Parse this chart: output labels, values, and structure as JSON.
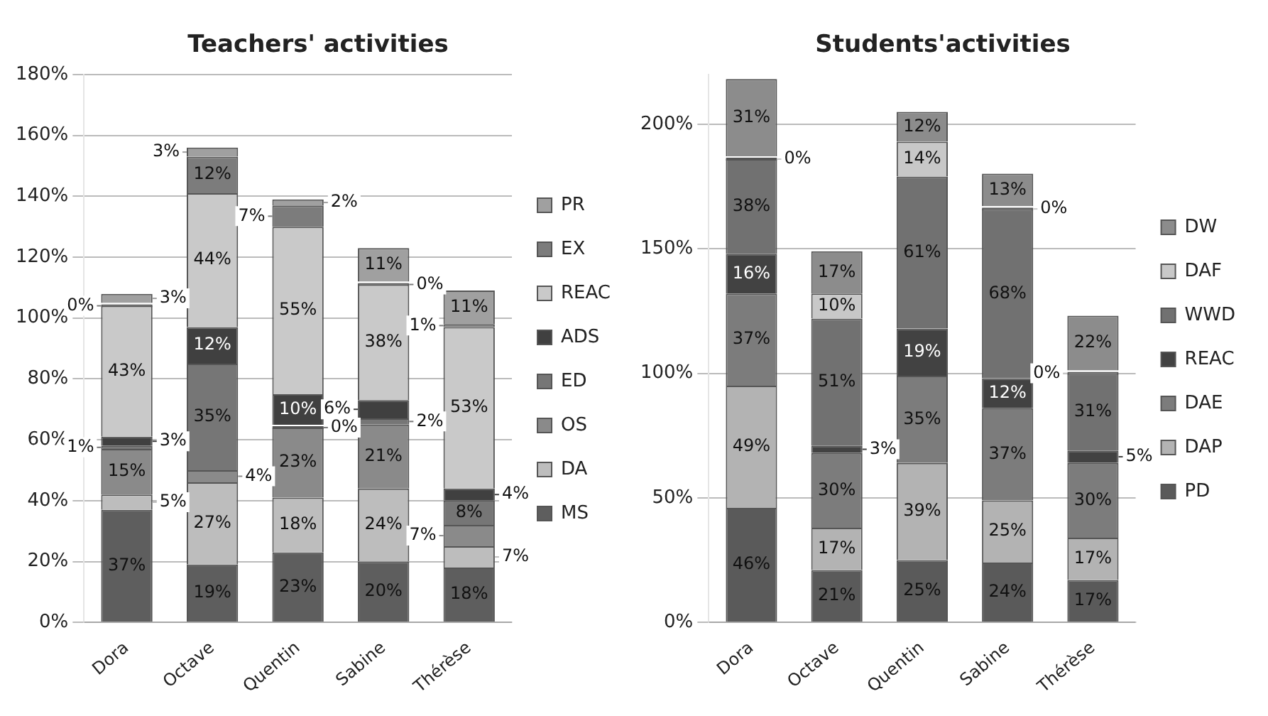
{
  "chart_data": [
    {
      "type": "bar",
      "title": "Teachers' activities",
      "categories": [
        "Dora",
        "Octave",
        "Quentin",
        "Sabine",
        "Thérèse"
      ],
      "stacked": true,
      "legend": "right",
      "grid": "y",
      "ylim": [
        0,
        180
      ],
      "yticks": [
        {
          "value": 0,
          "label": "0%"
        },
        {
          "value": 20,
          "label": "20%"
        },
        {
          "value": 40,
          "label": "40%"
        },
        {
          "value": 60,
          "label": "60%"
        },
        {
          "value": 80,
          "label": "80%"
        },
        {
          "value": 100,
          "label": "100%"
        },
        {
          "value": 120,
          "label": "120%"
        },
        {
          "value": 140,
          "label": "140%"
        },
        {
          "value": 160,
          "label": "160%"
        },
        {
          "value": 180,
          "label": "180%"
        }
      ],
      "series": [
        {
          "name": "MS",
          "color": "#5e5e5e",
          "values": [
            37,
            19,
            23,
            20,
            18
          ],
          "value_labels": [
            "37%",
            "19%",
            "23%",
            "20%",
            "18%"
          ]
        },
        {
          "name": "DA",
          "color": "#bdbdbd",
          "values": [
            5,
            27,
            18,
            24,
            7
          ],
          "value_labels": [
            "5%",
            "27%",
            "18%",
            "24%",
            "7%"
          ]
        },
        {
          "name": "OS",
          "color": "#8a8a8a",
          "values": [
            15,
            4,
            23,
            21,
            7
          ],
          "value_labels": [
            "15%",
            "4%",
            "23%",
            "21%",
            "7%"
          ]
        },
        {
          "name": "ED",
          "color": "#767676",
          "values": [
            1,
            35,
            0,
            2,
            8
          ],
          "value_labels": [
            "1%",
            "35%",
            "0%",
            "2%",
            "8%"
          ]
        },
        {
          "name": "ADS",
          "color": "#404040",
          "values": [
            3,
            12,
            10,
            6,
            4
          ],
          "value_labels": [
            "3%",
            "12%",
            "10%",
            "6%",
            "4%"
          ]
        },
        {
          "name": "REAC",
          "color": "#c9c9c9",
          "values": [
            43,
            44,
            55,
            38,
            53
          ],
          "value_labels": [
            "43%",
            "44%",
            "55%",
            "38%",
            "53%"
          ]
        },
        {
          "name": "EX",
          "color": "#7c7c7c",
          "values": [
            0,
            12,
            7,
            0,
            1
          ],
          "value_labels": [
            "0%",
            "12%",
            "7%",
            "0%",
            "1%"
          ]
        },
        {
          "name": "PR",
          "color": "#a0a0a0",
          "values": [
            3,
            3,
            2,
            11,
            11
          ],
          "value_labels": [
            "3%",
            "3%",
            "2%",
            "11%",
            "11%"
          ]
        }
      ]
    },
    {
      "type": "bar",
      "title": "Students'activities",
      "categories": [
        "Dora",
        "Octave",
        "Quentin",
        "Sabine",
        "Thérèse"
      ],
      "stacked": true,
      "legend": "right",
      "grid": "y",
      "ylim": [
        0,
        220
      ],
      "yticks": [
        {
          "value": 0,
          "label": "0%"
        },
        {
          "value": 50,
          "label": "50%"
        },
        {
          "value": 100,
          "label": "100%"
        },
        {
          "value": 150,
          "label": "150%"
        },
        {
          "value": 200,
          "label": "200%"
        }
      ],
      "series": [
        {
          "name": "PD",
          "color": "#5a5a5a",
          "values": [
            46,
            21,
            25,
            24,
            17
          ],
          "value_labels": [
            "46%",
            "21%",
            "25%",
            "24%",
            "17%"
          ]
        },
        {
          "name": "DAP",
          "color": "#b3b3b3",
          "values": [
            49,
            17,
            39,
            25,
            17
          ],
          "value_labels": [
            "49%",
            "17%",
            "39%",
            "25%",
            "17%"
          ]
        },
        {
          "name": "DAE",
          "color": "#7c7c7c",
          "values": [
            37,
            30,
            35,
            37,
            30
          ],
          "value_labels": [
            "37%",
            "30%",
            "35%",
            "37%",
            "30%"
          ]
        },
        {
          "name": "REAC",
          "color": "#424242",
          "values": [
            16,
            3,
            19,
            12,
            5
          ],
          "value_labels": [
            "16%",
            "3%",
            "19%",
            "12%",
            "5%"
          ]
        },
        {
          "name": "WWD",
          "color": "#717171",
          "values": [
            38,
            51,
            61,
            68,
            31
          ],
          "value_labels": [
            "38%",
            "51%",
            "61%",
            "68%",
            "31%"
          ]
        },
        {
          "name": "DAF",
          "color": "#c8c8c8",
          "values": [
            0,
            10,
            14,
            0,
            0
          ],
          "value_labels": [
            "0%",
            "10%",
            "14%",
            "0%",
            "0%"
          ]
        },
        {
          "name": "DW",
          "color": "#8c8c8c",
          "values": [
            31,
            17,
            12,
            13,
            22
          ],
          "value_labels": [
            "31%",
            "17%",
            "12%",
            "13%",
            "22%"
          ]
        }
      ]
    }
  ]
}
